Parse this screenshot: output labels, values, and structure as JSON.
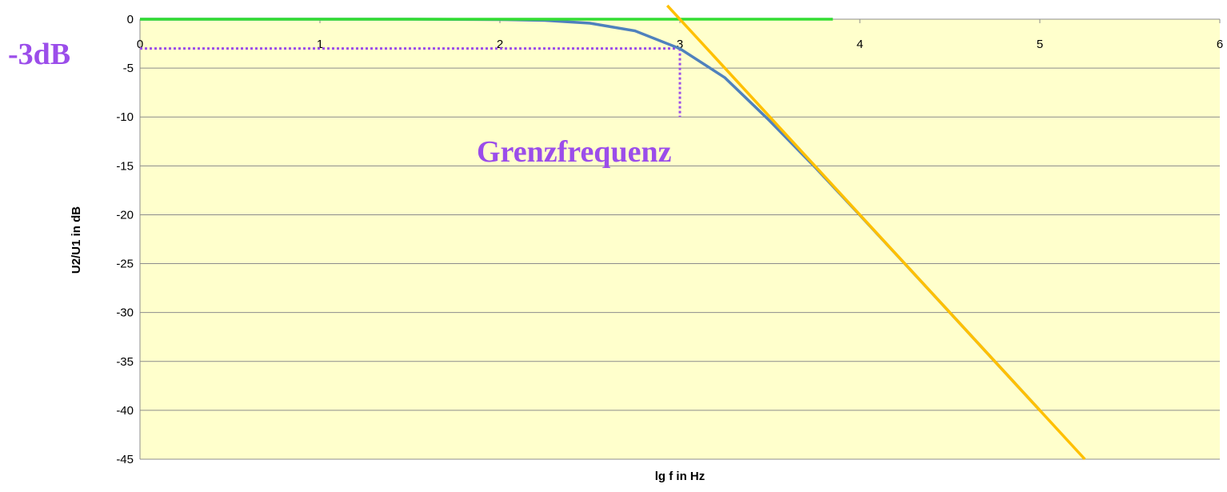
{
  "chart_data": {
    "type": "line",
    "xlabel": "lg f in Hz",
    "ylabel": "U2/U1 in dB",
    "xlim": [
      0,
      6
    ],
    "xticks": [
      0,
      1,
      2,
      3,
      4,
      5,
      6
    ],
    "ylim": [
      -45,
      0
    ],
    "yticks": [
      0,
      -5,
      -10,
      -15,
      -20,
      -25,
      -30,
      -35,
      -40,
      -45
    ],
    "grid": true,
    "series": [
      {
        "color": "#4f81bd",
        "x": [
          0,
          1,
          1.5,
          2,
          2.25,
          2.5,
          2.75,
          3,
          3.25,
          3.5,
          3.75,
          4,
          4.25,
          4.5,
          4.75,
          5
        ],
        "values": [
          0,
          0,
          0,
          -0.04,
          -0.12,
          -0.41,
          -1.19,
          -3.01,
          -5.98,
          -10.41,
          -15.12,
          -20.04,
          -25.01,
          -30.0,
          -35.0,
          -40.0
        ]
      },
      {
        "color": "#33dd33",
        "x": [
          0,
          3.85
        ],
        "values": [
          0,
          0
        ]
      },
      {
        "color": "#ffc000",
        "x": [
          2.93,
          5.25
        ],
        "values": [
          1.4,
          -45
        ]
      }
    ],
    "guides": [
      {
        "color": "#9b4dea",
        "x": [
          0,
          3
        ],
        "values": [
          -3,
          -3
        ]
      },
      {
        "color": "#9b4dea",
        "x": [
          3,
          3
        ],
        "values": [
          -3,
          -10
        ]
      }
    ],
    "annotations": [
      "-3dB",
      "Grenzfrequenz"
    ]
  }
}
